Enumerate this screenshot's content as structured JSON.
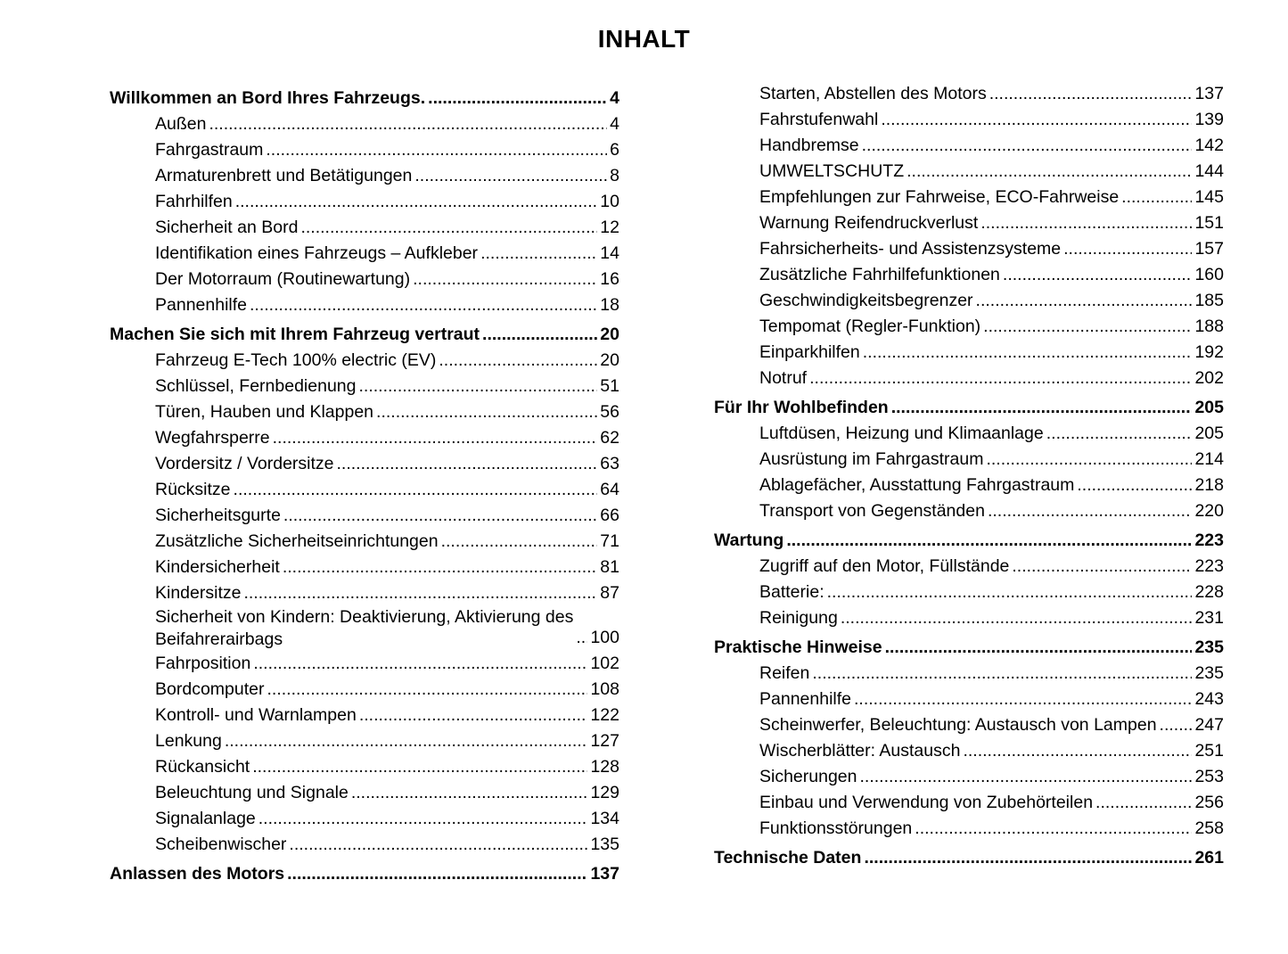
{
  "title": "INHALT",
  "columns": [
    [
      {
        "level": 1,
        "text": "Willkommen an Bord Ihres Fahrzeugs.",
        "page": "4"
      },
      {
        "level": 2,
        "text": "Außen",
        "page": "4"
      },
      {
        "level": 2,
        "text": "Fahrgastraum",
        "page": "6"
      },
      {
        "level": 2,
        "text": "Armaturenbrett und Betätigungen",
        "page": "8"
      },
      {
        "level": 2,
        "text": "Fahrhilfen",
        "page": "10"
      },
      {
        "level": 2,
        "text": "Sicherheit an Bord",
        "page": "12"
      },
      {
        "level": 2,
        "text": "Identifikation eines Fahrzeugs – Aufkleber",
        "page": "14"
      },
      {
        "level": 2,
        "text": "Der Motorraum (Routinewartung)",
        "page": "16"
      },
      {
        "level": 2,
        "text": "Pannenhilfe",
        "page": "18"
      },
      {
        "level": 1,
        "text": "Machen Sie sich mit Ihrem Fahrzeug vertraut",
        "page": "20"
      },
      {
        "level": 2,
        "text": "Fahrzeug E-Tech 100% electric (EV)",
        "page": "20"
      },
      {
        "level": 2,
        "text": "Schlüssel, Fernbedienung",
        "page": "51"
      },
      {
        "level": 2,
        "text": "Türen, Hauben und Klappen",
        "page": "56"
      },
      {
        "level": 2,
        "text": "Wegfahrsperre",
        "page": "62"
      },
      {
        "level": 2,
        "text": "Vordersitz / Vordersitze",
        "page": "63"
      },
      {
        "level": 2,
        "text": "Rücksitze",
        "page": "64"
      },
      {
        "level": 2,
        "text": "Sicherheitsgurte",
        "page": "66"
      },
      {
        "level": 2,
        "text": "Zusätzliche Sicherheitseinrichtungen",
        "page": "71"
      },
      {
        "level": 2,
        "text": "Kindersicherheit",
        "page": "81"
      },
      {
        "level": 2,
        "text": "Kindersitze",
        "page": "87"
      },
      {
        "level": 2,
        "lines": [
          "Sicherheit von Kindern: Deaktivierung, Aktivierung des",
          "Beifahrerairbags"
        ],
        "page": "100"
      },
      {
        "level": 2,
        "text": "Fahrposition",
        "page": "102"
      },
      {
        "level": 2,
        "text": "Bordcomputer",
        "page": "108"
      },
      {
        "level": 2,
        "text": "Kontroll- und Warnlampen",
        "page": "122"
      },
      {
        "level": 2,
        "text": "Lenkung",
        "page": "127"
      },
      {
        "level": 2,
        "text": "Rückansicht",
        "page": "128"
      },
      {
        "level": 2,
        "text": "Beleuchtung und Signale",
        "page": "129"
      },
      {
        "level": 2,
        "text": "Signalanlage",
        "page": "134"
      },
      {
        "level": 2,
        "text": "Scheibenwischer",
        "page": "135"
      },
      {
        "level": 1,
        "text": "Anlassen des Motors",
        "page": "137"
      }
    ],
    [
      {
        "level": 2,
        "text": "Starten, Abstellen des Motors",
        "page": "137"
      },
      {
        "level": 2,
        "text": "Fahrstufenwahl",
        "page": "139"
      },
      {
        "level": 2,
        "text": "Handbremse",
        "page": "142"
      },
      {
        "level": 2,
        "text": "UMWELTSCHUTZ",
        "page": "144"
      },
      {
        "level": 2,
        "text": "Empfehlungen zur Fahrweise, ECO-Fahrweise",
        "page": "145"
      },
      {
        "level": 2,
        "text": "Warnung Reifendruckverlust",
        "page": "151"
      },
      {
        "level": 2,
        "text": "Fahrsicherheits- und Assistenzsysteme",
        "page": "157"
      },
      {
        "level": 2,
        "text": "Zusätzliche Fahrhilfefunktionen",
        "page": "160"
      },
      {
        "level": 2,
        "text": "Geschwindigkeitsbegrenzer",
        "page": "185"
      },
      {
        "level": 2,
        "text": "Tempomat (Regler-Funktion)",
        "page": "188"
      },
      {
        "level": 2,
        "text": "Einparkhilfen",
        "page": "192"
      },
      {
        "level": 2,
        "text": "Notruf",
        "page": "202"
      },
      {
        "level": 1,
        "text": "Für Ihr Wohlbefinden",
        "page": "205"
      },
      {
        "level": 2,
        "text": "Luftdüsen, Heizung und Klimaanlage",
        "page": "205"
      },
      {
        "level": 2,
        "text": "Ausrüstung im Fahrgastraum",
        "page": "214"
      },
      {
        "level": 2,
        "text": "Ablagefächer, Ausstattung Fahrgastraum",
        "page": "218"
      },
      {
        "level": 2,
        "text": "Transport von Gegenständen",
        "page": "220"
      },
      {
        "level": 1,
        "text": "Wartung",
        "page": "223"
      },
      {
        "level": 2,
        "text": "Zugriff auf den Motor, Füllstände",
        "page": "223"
      },
      {
        "level": 2,
        "text": "Batterie:",
        "page": "228"
      },
      {
        "level": 2,
        "text": "Reinigung",
        "page": "231"
      },
      {
        "level": 1,
        "text": "Praktische Hinweise",
        "page": "235"
      },
      {
        "level": 2,
        "text": "Reifen",
        "page": "235"
      },
      {
        "level": 2,
        "text": "Pannenhilfe",
        "page": "243"
      },
      {
        "level": 2,
        "text": "Scheinwerfer, Beleuchtung: Austausch von Lampen",
        "page": "247"
      },
      {
        "level": 2,
        "text": "Wischerblätter: Austausch",
        "page": "251"
      },
      {
        "level": 2,
        "text": "Sicherungen",
        "page": "253"
      },
      {
        "level": 2,
        "text": "Einbau und Verwendung von Zubehörteilen",
        "page": "256"
      },
      {
        "level": 2,
        "text": "Funktionsstörungen",
        "page": "258"
      },
      {
        "level": 1,
        "text": "Technische Daten",
        "page": "261"
      }
    ]
  ]
}
